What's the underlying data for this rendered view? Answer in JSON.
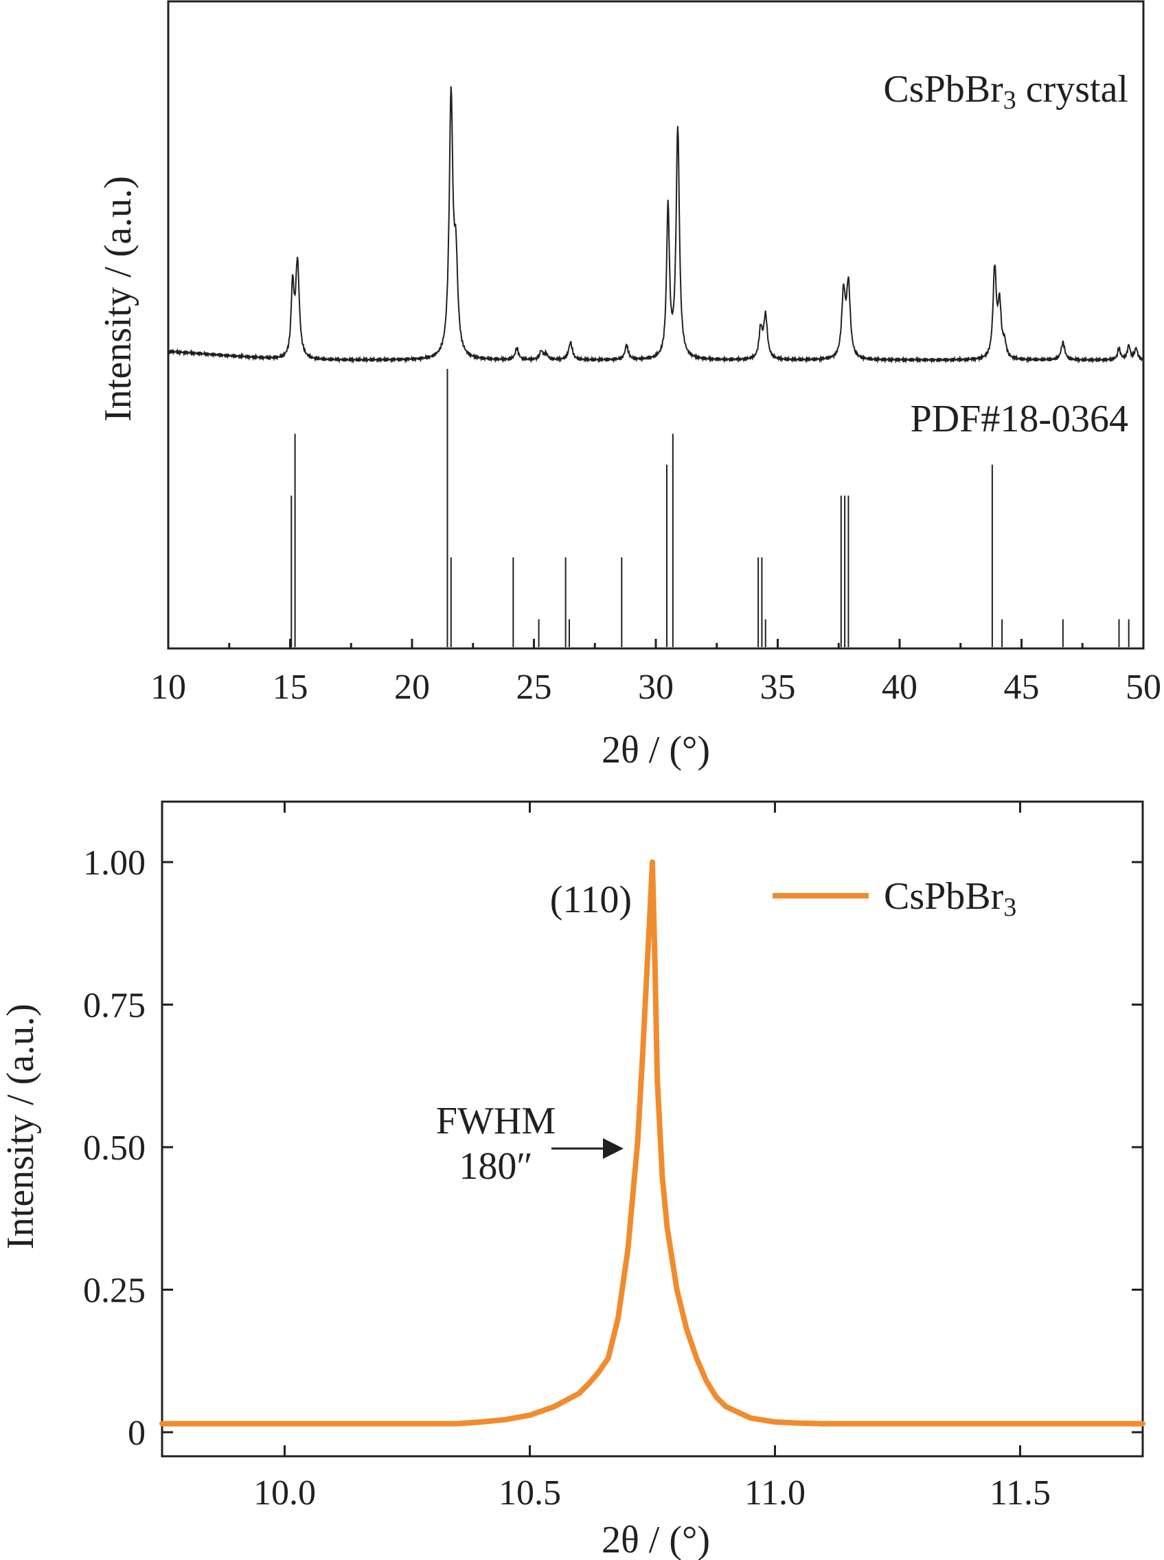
{
  "chart_data": [
    {
      "type": "line",
      "ylabel": "Intensity / (a.u.)",
      "xlabel": "2θ / (°)",
      "xlim": [
        10,
        50
      ],
      "xticks": [
        "10",
        "15",
        "20",
        "25",
        "30",
        "35",
        "40",
        "45",
        "50"
      ],
      "y_tick_labels": false,
      "series": [
        {
          "name": "CsPbBr3 crystal",
          "style": "measured pattern, thin black line",
          "baseline": 0.09,
          "peaks": [
            {
              "x": 15.1,
              "h": 0.24,
              "w": 0.07
            },
            {
              "x": 15.3,
              "h": 0.33,
              "w": 0.09
            },
            {
              "x": 21.6,
              "h": 0.9,
              "w": 0.09
            },
            {
              "x": 21.8,
              "h": 0.3,
              "w": 0.09
            },
            {
              "x": 24.3,
              "h": 0.04,
              "w": 0.08
            },
            {
              "x": 25.3,
              "h": 0.03,
              "w": 0.08
            },
            {
              "x": 25.5,
              "h": 0.02,
              "w": 0.08
            },
            {
              "x": 26.5,
              "h": 0.06,
              "w": 0.09
            },
            {
              "x": 28.8,
              "h": 0.05,
              "w": 0.08
            },
            {
              "x": 30.5,
              "h": 0.52,
              "w": 0.07
            },
            {
              "x": 30.9,
              "h": 0.8,
              "w": 0.08
            },
            {
              "x": 34.3,
              "h": 0.1,
              "w": 0.08
            },
            {
              "x": 34.5,
              "h": 0.15,
              "w": 0.09
            },
            {
              "x": 37.7,
              "h": 0.22,
              "w": 0.09
            },
            {
              "x": 37.9,
              "h": 0.25,
              "w": 0.09
            },
            {
              "x": 43.9,
              "h": 0.31,
              "w": 0.08
            },
            {
              "x": 44.1,
              "h": 0.18,
              "w": 0.08
            },
            {
              "x": 44.3,
              "h": 0.05,
              "w": 0.08
            },
            {
              "x": 46.7,
              "h": 0.06,
              "w": 0.09
            },
            {
              "x": 49.0,
              "h": 0.04,
              "w": 0.07
            },
            {
              "x": 49.4,
              "h": 0.05,
              "w": 0.07
            },
            {
              "x": 49.7,
              "h": 0.04,
              "w": 0.07
            }
          ]
        },
        {
          "name": "PDF#18-0364",
          "style": "reference stick pattern",
          "sticks": [
            {
              "x": 15.05,
              "h": 0.49
            },
            {
              "x": 15.2,
              "h": 0.69
            },
            {
              "x": 21.45,
              "h": 0.9
            },
            {
              "x": 21.6,
              "h": 0.29
            },
            {
              "x": 24.15,
              "h": 0.29
            },
            {
              "x": 25.2,
              "h": 0.09
            },
            {
              "x": 26.3,
              "h": 0.29
            },
            {
              "x": 26.45,
              "h": 0.09
            },
            {
              "x": 28.6,
              "h": 0.29
            },
            {
              "x": 30.45,
              "h": 0.59
            },
            {
              "x": 30.7,
              "h": 0.69
            },
            {
              "x": 34.2,
              "h": 0.29
            },
            {
              "x": 34.35,
              "h": 0.29
            },
            {
              "x": 34.5,
              "h": 0.09
            },
            {
              "x": 37.6,
              "h": 0.49
            },
            {
              "x": 37.75,
              "h": 0.49
            },
            {
              "x": 37.9,
              "h": 0.49
            },
            {
              "x": 43.8,
              "h": 0.59
            },
            {
              "x": 44.2,
              "h": 0.09
            },
            {
              "x": 46.7,
              "h": 0.09
            },
            {
              "x": 49.0,
              "h": 0.09
            },
            {
              "x": 49.4,
              "h": 0.09
            }
          ]
        }
      ],
      "colors": {
        "line": "#231f20"
      }
    },
    {
      "type": "line",
      "ylabel": "Intensity / (a.u.)",
      "xlabel": "2θ / (°)",
      "xlim": [
        9.75,
        11.75
      ],
      "ylim": [
        -0.02,
        1.1
      ],
      "xticks": [
        "10.0",
        "10.5",
        "11.0",
        "11.5"
      ],
      "yticks": [
        "0",
        "0.25",
        "0.50",
        "0.75",
        "1.00"
      ],
      "legend": "top-right",
      "series": [
        {
          "name": "CsPbBr3",
          "color": "#f08c2e",
          "x": [
            9.75,
            10.0,
            10.2,
            10.3,
            10.35,
            10.4,
            10.45,
            10.5,
            10.55,
            10.6,
            10.62,
            10.64,
            10.66,
            10.68,
            10.7,
            10.72,
            10.73,
            10.74,
            10.745,
            10.75,
            10.755,
            10.76,
            10.77,
            10.78,
            10.8,
            10.82,
            10.84,
            10.86,
            10.88,
            10.9,
            10.95,
            11.0,
            11.05,
            11.1,
            11.2,
            11.5,
            11.75
          ],
          "y": [
            0.015,
            0.015,
            0.015,
            0.015,
            0.015,
            0.018,
            0.022,
            0.03,
            0.045,
            0.068,
            0.085,
            0.105,
            0.13,
            0.2,
            0.32,
            0.51,
            0.66,
            0.83,
            0.91,
            1.0,
            0.83,
            0.62,
            0.45,
            0.36,
            0.25,
            0.18,
            0.13,
            0.09,
            0.062,
            0.045,
            0.025,
            0.018,
            0.016,
            0.015,
            0.015,
            0.015,
            0.015
          ]
        }
      ],
      "annotations": [
        {
          "text": "(110)",
          "x": 10.75,
          "y": 1.0
        },
        {
          "text": [
            "FWHM",
            "180″"
          ],
          "x": 10.7,
          "y": 0.5,
          "arrow": true
        }
      ]
    }
  ]
}
